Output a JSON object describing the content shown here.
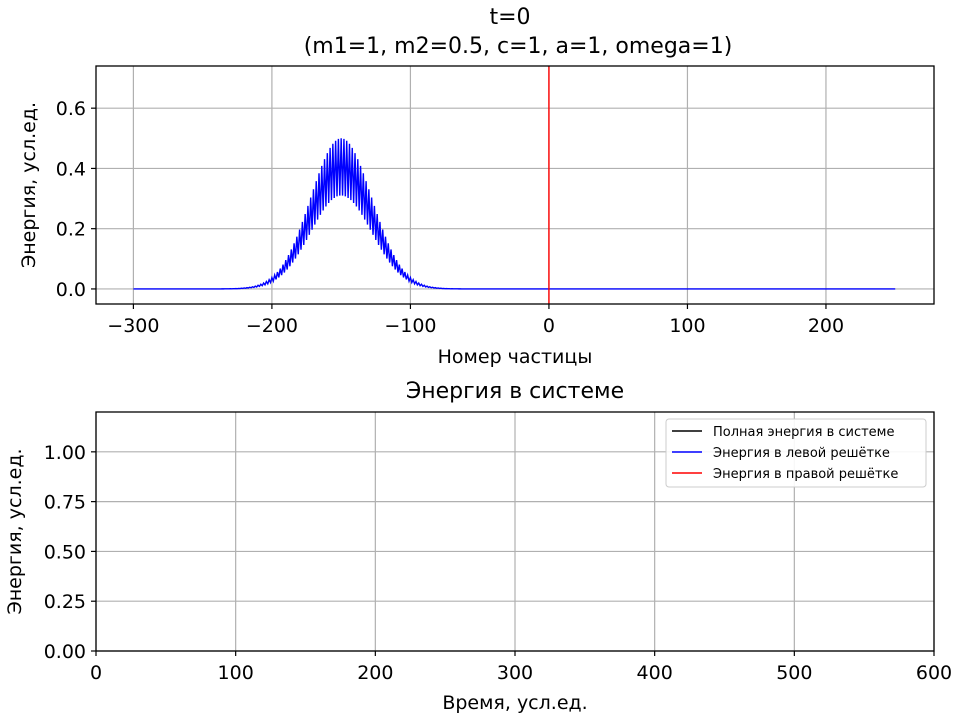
{
  "figure": {
    "title_line1": "t=0",
    "title_line2": "(m1=1, m2=0.5, c=1, a=1, omega=1)"
  },
  "chart_data": [
    {
      "type": "line",
      "title": "",
      "xlabel": "Номер частицы",
      "ylabel": "Энергия, усл.ед.",
      "xlim": [
        -327,
        278
      ],
      "ylim": [
        -0.05,
        0.74
      ],
      "xticks": [
        -300,
        -200,
        -100,
        0,
        100,
        200
      ],
      "xtick_labels": [
        "−300",
        "−200",
        "−100",
        "0",
        "100",
        "200"
      ],
      "yticks": [
        0.0,
        0.2,
        0.4,
        0.6
      ],
      "ytick_labels": [
        "0.0",
        "0.2",
        "0.4",
        "0.6"
      ],
      "grid": true,
      "series": [
        {
          "color": "#0000ff",
          "description_of_shape": "oscillating gaussian packet",
          "x_range": [
            -300,
            250
          ],
          "peak_center": -150,
          "peak_width_sigma": 22,
          "upper_envelope_peak": 0.5,
          "lower_envelope_peak": 0.31
        }
      ],
      "vlines": [
        {
          "x": 0,
          "color": "#ff0000"
        }
      ]
    },
    {
      "type": "line",
      "title": "Энергия в системе",
      "xlabel": "Время, усл.ед.",
      "ylabel": "Энергия, усл.ед.",
      "xlim": [
        0,
        600
      ],
      "ylim": [
        0,
        1.2
      ],
      "xticks": [
        0,
        100,
        200,
        300,
        400,
        500,
        600
      ],
      "xtick_labels": [
        "0",
        "100",
        "200",
        "300",
        "400",
        "500",
        "600"
      ],
      "yticks": [
        0.0,
        0.25,
        0.5,
        0.75,
        1.0
      ],
      "ytick_labels": [
        "0.00",
        "0.25",
        "0.50",
        "0.75",
        "1.00"
      ],
      "grid": true,
      "legend_position": "top-right",
      "series": [
        {
          "name": "Полная энергия в системе",
          "color": "#000000",
          "x": [],
          "y": []
        },
        {
          "name": "Энергия в левой решётке",
          "color": "#0000ff",
          "x": [],
          "y": []
        },
        {
          "name": "Энергия в правой решётке",
          "color": "#ff0000",
          "x": [],
          "y": []
        }
      ]
    }
  ]
}
